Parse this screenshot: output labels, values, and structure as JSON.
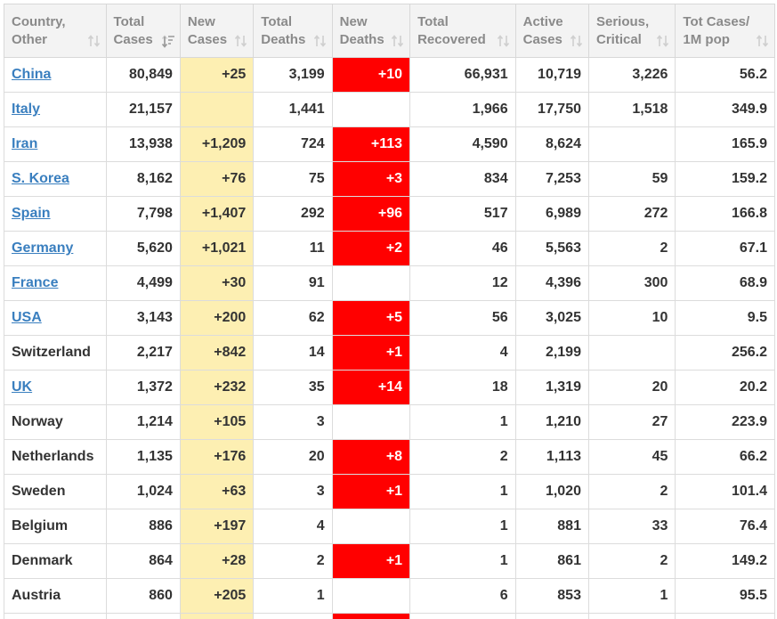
{
  "table": {
    "headers": [
      {
        "label": "Country,\nOther",
        "sort": "none"
      },
      {
        "label": "Total\nCases",
        "sort": "desc"
      },
      {
        "label": "New\nCases",
        "sort": "none"
      },
      {
        "label": "Total\nDeaths",
        "sort": "none"
      },
      {
        "label": "New\nDeaths",
        "sort": "none"
      },
      {
        "label": "Total\nRecovered",
        "sort": "none"
      },
      {
        "label": "Active\nCases",
        "sort": "none"
      },
      {
        "label": "Serious,\nCritical",
        "sort": "none"
      },
      {
        "label": "Tot Cases/\n1M pop",
        "sort": "none"
      }
    ],
    "rows": [
      {
        "country": "China",
        "link": true,
        "total_cases": "80,849",
        "new_cases": "+25",
        "total_deaths": "3,199",
        "new_deaths": "+10",
        "total_recovered": "66,931",
        "active_cases": "10,719",
        "serious_critical": "3,226",
        "tot_cases_1m": "56.2"
      },
      {
        "country": "Italy",
        "link": true,
        "total_cases": "21,157",
        "new_cases": "",
        "total_deaths": "1,441",
        "new_deaths": "",
        "total_recovered": "1,966",
        "active_cases": "17,750",
        "serious_critical": "1,518",
        "tot_cases_1m": "349.9"
      },
      {
        "country": "Iran",
        "link": true,
        "total_cases": "13,938",
        "new_cases": "+1,209",
        "total_deaths": "724",
        "new_deaths": "+113",
        "total_recovered": "4,590",
        "active_cases": "8,624",
        "serious_critical": "",
        "tot_cases_1m": "165.9"
      },
      {
        "country": "S. Korea",
        "link": true,
        "total_cases": "8,162",
        "new_cases": "+76",
        "total_deaths": "75",
        "new_deaths": "+3",
        "total_recovered": "834",
        "active_cases": "7,253",
        "serious_critical": "59",
        "tot_cases_1m": "159.2"
      },
      {
        "country": "Spain",
        "link": true,
        "total_cases": "7,798",
        "new_cases": "+1,407",
        "total_deaths": "292",
        "new_deaths": "+96",
        "total_recovered": "517",
        "active_cases": "6,989",
        "serious_critical": "272",
        "tot_cases_1m": "166.8"
      },
      {
        "country": "Germany",
        "link": true,
        "total_cases": "5,620",
        "new_cases": "+1,021",
        "total_deaths": "11",
        "new_deaths": "+2",
        "total_recovered": "46",
        "active_cases": "5,563",
        "serious_critical": "2",
        "tot_cases_1m": "67.1"
      },
      {
        "country": "France",
        "link": true,
        "total_cases": "4,499",
        "new_cases": "+30",
        "total_deaths": "91",
        "new_deaths": "",
        "total_recovered": "12",
        "active_cases": "4,396",
        "serious_critical": "300",
        "tot_cases_1m": "68.9"
      },
      {
        "country": "USA",
        "link": true,
        "total_cases": "3,143",
        "new_cases": "+200",
        "total_deaths": "62",
        "new_deaths": "+5",
        "total_recovered": "56",
        "active_cases": "3,025",
        "serious_critical": "10",
        "tot_cases_1m": "9.5"
      },
      {
        "country": "Switzerland",
        "link": false,
        "total_cases": "2,217",
        "new_cases": "+842",
        "total_deaths": "14",
        "new_deaths": "+1",
        "total_recovered": "4",
        "active_cases": "2,199",
        "serious_critical": "",
        "tot_cases_1m": "256.2"
      },
      {
        "country": "UK",
        "link": true,
        "total_cases": "1,372",
        "new_cases": "+232",
        "total_deaths": "35",
        "new_deaths": "+14",
        "total_recovered": "18",
        "active_cases": "1,319",
        "serious_critical": "20",
        "tot_cases_1m": "20.2"
      },
      {
        "country": "Norway",
        "link": false,
        "total_cases": "1,214",
        "new_cases": "+105",
        "total_deaths": "3",
        "new_deaths": "",
        "total_recovered": "1",
        "active_cases": "1,210",
        "serious_critical": "27",
        "tot_cases_1m": "223.9"
      },
      {
        "country": "Netherlands",
        "link": false,
        "total_cases": "1,135",
        "new_cases": "+176",
        "total_deaths": "20",
        "new_deaths": "+8",
        "total_recovered": "2",
        "active_cases": "1,113",
        "serious_critical": "45",
        "tot_cases_1m": "66.2"
      },
      {
        "country": "Sweden",
        "link": false,
        "total_cases": "1,024",
        "new_cases": "+63",
        "total_deaths": "3",
        "new_deaths": "+1",
        "total_recovered": "1",
        "active_cases": "1,020",
        "serious_critical": "2",
        "tot_cases_1m": "101.4"
      },
      {
        "country": "Belgium",
        "link": false,
        "total_cases": "886",
        "new_cases": "+197",
        "total_deaths": "4",
        "new_deaths": "",
        "total_recovered": "1",
        "active_cases": "881",
        "serious_critical": "33",
        "tot_cases_1m": "76.4"
      },
      {
        "country": "Denmark",
        "link": false,
        "total_cases": "864",
        "new_cases": "+28",
        "total_deaths": "2",
        "new_deaths": "+1",
        "total_recovered": "1",
        "active_cases": "861",
        "serious_critical": "2",
        "tot_cases_1m": "149.2"
      },
      {
        "country": "Austria",
        "link": false,
        "total_cases": "860",
        "new_cases": "+205",
        "total_deaths": "1",
        "new_deaths": "",
        "total_recovered": "6",
        "active_cases": "853",
        "serious_critical": "1",
        "tot_cases_1m": "95.5"
      }
    ]
  },
  "colors": {
    "new_cases_bg": "#fdefb2",
    "new_deaths_bg": "#ff0000",
    "link": "#3a7fbf",
    "header_bg": "#f3f3f3"
  },
  "icons": {
    "sort_none": "sort-arrows-icon",
    "sort_desc": "sort-desc-icon"
  }
}
